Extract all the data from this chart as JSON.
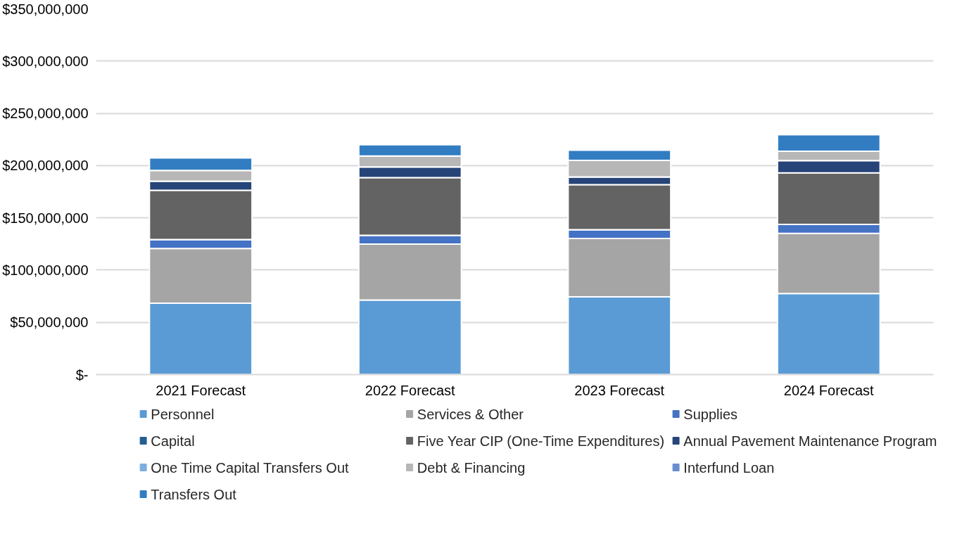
{
  "chart_data": {
    "type": "bar",
    "stacked": true,
    "categories": [
      "2021 Forecast",
      "2022 Forecast",
      "2023 Forecast",
      "2024 Forecast"
    ],
    "series": [
      {
        "name": "Personnel",
        "color": "#5b9bd5",
        "values": [
          68400000,
          71400000,
          74400000,
          77500000
        ]
      },
      {
        "name": "Services & Other",
        "color": "#a5a5a5",
        "values": [
          52200000,
          53500000,
          55900000,
          57700000
        ]
      },
      {
        "name": "Supplies",
        "color": "#4472c4",
        "values": [
          8600000,
          8400000,
          8400000,
          8500000
        ]
      },
      {
        "name": "Capital",
        "color": "#255e91",
        "values": [
          0,
          0,
          0,
          0
        ]
      },
      {
        "name": "Five Year CIP (One-Time Expenditures)",
        "color": "#636363",
        "values": [
          47100000,
          55200000,
          43100000,
          49300000
        ]
      },
      {
        "name": "Annual Pavement Maintenance Program",
        "color": "#264478",
        "values": [
          8800000,
          10200000,
          7300000,
          11800000
        ]
      },
      {
        "name": "One Time Capital Transfers Out",
        "color": "#7cafdd",
        "values": [
          0,
          0,
          0,
          0
        ]
      },
      {
        "name": "Debt & Financing",
        "color": "#b7b7b7",
        "values": [
          10200000,
          10400000,
          15800000,
          8900000
        ]
      },
      {
        "name": "Interfund Loan",
        "color": "#698ed0",
        "values": [
          0,
          0,
          0,
          0
        ]
      },
      {
        "name": "Transfers Out",
        "color": "#327dc2",
        "values": [
          12000000,
          10900000,
          9800000,
          15900000
        ]
      }
    ],
    "ylim": [
      0,
      350000000
    ],
    "yticks": [
      {
        "value": 0,
        "label": "$-"
      },
      {
        "value": 50000000,
        "label": "$50,000,000"
      },
      {
        "value": 100000000,
        "label": "$100,000,000"
      },
      {
        "value": 150000000,
        "label": "$150,000,000"
      },
      {
        "value": 200000000,
        "label": "$200,000,000"
      },
      {
        "value": 250000000,
        "label": "$250,000,000"
      },
      {
        "value": 300000000,
        "label": "$300,000,000"
      },
      {
        "value": 350000000,
        "label": "$350,000,000"
      }
    ],
    "grid": "y",
    "legend": "bottom"
  }
}
